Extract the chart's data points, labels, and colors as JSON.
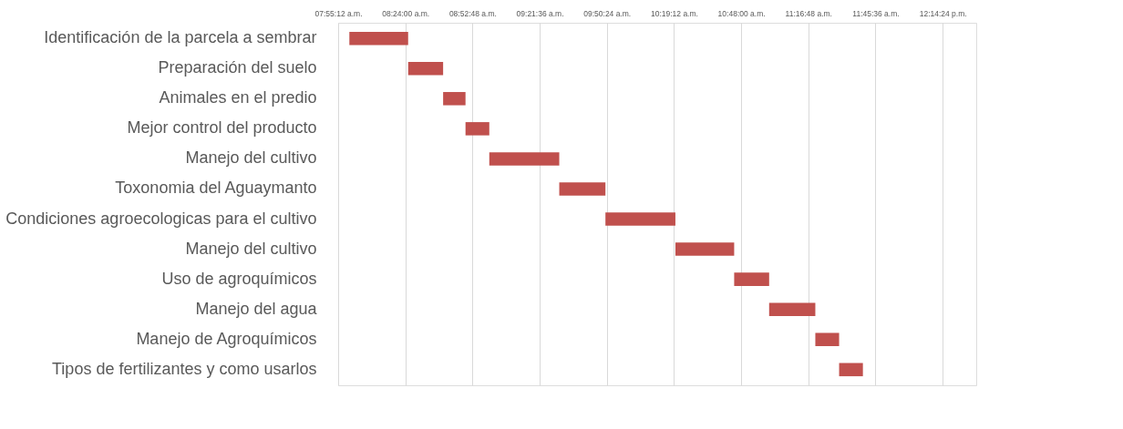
{
  "chart_data": {
    "type": "bar",
    "orientation": "horizontal",
    "categories": [
      "Identificación de la parcela a sembrar",
      "Preparación del suelo",
      "Animales en el predio",
      "Mejor control del producto",
      "Manejo del cultivo",
      "Toxonomia del Aguaymanto",
      "Condiciones agroecologicas para el cultivo",
      "Manejo del cultivo",
      "Uso de agroquímicos",
      "Manejo del agua",
      "Manejo de Agroquímicos",
      "Tipos de fertilizantes y como usarlos"
    ],
    "base": [
      8.0,
      8.42,
      8.67,
      8.83,
      9.0,
      9.5,
      9.83,
      10.33,
      10.75,
      11.0,
      11.33,
      11.5
    ],
    "values": [
      0.42,
      0.25,
      0.16,
      0.17,
      0.5,
      0.33,
      0.5,
      0.42,
      0.25,
      0.33,
      0.17,
      0.17
    ],
    "color": "#c0504d",
    "xlim": [
      7.92,
      12.48
    ],
    "xticks": [
      {
        "value": 7.92,
        "label": "07:55:12 a.m."
      },
      {
        "value": 8.4,
        "label": "08:24:00 a.m."
      },
      {
        "value": 8.88,
        "label": "08:52:48 a.m."
      },
      {
        "value": 9.36,
        "label": "09:21:36 a.m."
      },
      {
        "value": 9.84,
        "label": "09:50:24 a.m."
      },
      {
        "value": 10.32,
        "label": "10:19:12 a.m."
      },
      {
        "value": 10.8,
        "label": "10:48:00 a.m."
      },
      {
        "value": 11.28,
        "label": "11:16:48 a.m."
      },
      {
        "value": 11.76,
        "label": "11:45:36 a.m."
      },
      {
        "value": 12.24,
        "label": "12:14:24 p.m."
      }
    ],
    "grid": "x"
  }
}
